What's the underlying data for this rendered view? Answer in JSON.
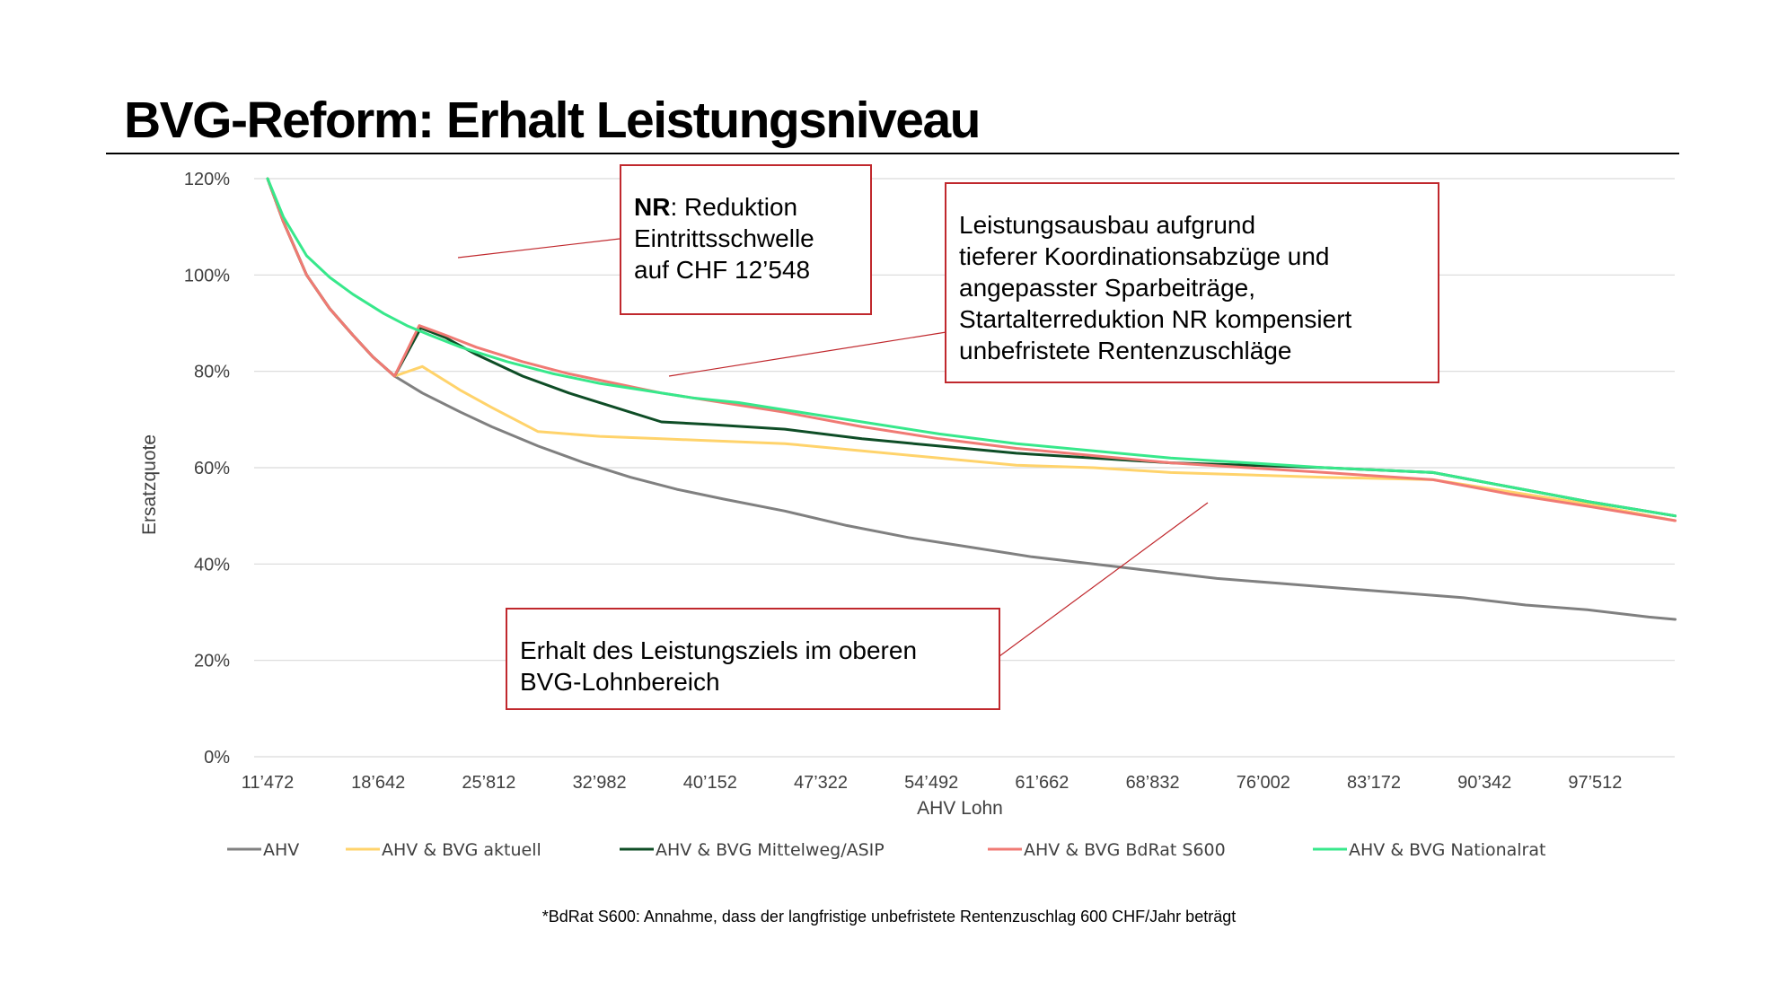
{
  "title": "BVG-Reform: Erhalt Leistungsniveau",
  "footnote": "*BdRat S600: Annahme, dass der langfristige unbefristete Rentenzuschlag 600 CHF/Jahr beträgt",
  "annotations": {
    "nr_box": {
      "bold": "NR",
      "line1_rest": ": Reduktion",
      "line2": "Eintrittsschwelle",
      "line3": "auf CHF 12’548"
    },
    "ausbau_box": {
      "lines": [
        "Leistungsausbau aufgrund",
        "tieferer Koordinationsabzüge und",
        "angepasster Sparbeiträge,",
        "Startalterreduktion NR kompensiert",
        "unbefristete Rentenzuschläge"
      ]
    },
    "erhalt_box": {
      "lines": [
        "Erhalt des Leistungsziels im oberen",
        "BVG-Lohnbereich"
      ]
    }
  },
  "colors": {
    "AHV": "#808080",
    "AHV & BVG aktuell": "#ffd36b",
    "AHV & BVG Mittelweg/ASIP": "#0e4d26",
    "AHV & BVG BdRat S600": "#f07a74",
    "AHV & BVG Nationalrat": "#37e88b",
    "callout_border": "#c0282d",
    "grid": "#d9d9d9"
  },
  "chart_data": {
    "type": "line",
    "xlabel": "AHV Lohn",
    "ylabel": "Ersatzquote",
    "ylim": [
      0,
      120
    ],
    "yticks": [
      "0%",
      "20%",
      "40%",
      "60%",
      "80%",
      "100%",
      "120%"
    ],
    "x_ticks": [
      "11’472",
      "18’642",
      "25’812",
      "32’982",
      "40’152",
      "47’322",
      "54’492",
      "61’662",
      "68’832",
      "76’002",
      "83’172",
      "90’342",
      "97’512"
    ],
    "xlim": [
      11472,
      103000
    ],
    "grid": "horizontal",
    "legend_position": "bottom",
    "series": [
      {
        "name": "AHV",
        "points": [
          [
            11472,
            120
          ],
          [
            12500,
            111
          ],
          [
            14000,
            100
          ],
          [
            15500,
            93
          ],
          [
            17000,
            87.5
          ],
          [
            18300,
            83
          ],
          [
            19700,
            79
          ],
          [
            21500,
            75.5
          ],
          [
            24000,
            71.5
          ],
          [
            26000,
            68.5
          ],
          [
            29000,
            64.5
          ],
          [
            32000,
            61
          ],
          [
            35000,
            58
          ],
          [
            38000,
            55.5
          ],
          [
            41000,
            53.5
          ],
          [
            45000,
            51
          ],
          [
            49000,
            48
          ],
          [
            53000,
            45.5
          ],
          [
            57000,
            43.5
          ],
          [
            61000,
            41.5
          ],
          [
            65000,
            40
          ],
          [
            69000,
            38.5
          ],
          [
            73000,
            37
          ],
          [
            77000,
            36
          ],
          [
            81000,
            35
          ],
          [
            85000,
            34
          ],
          [
            89000,
            33
          ],
          [
            93000,
            31.5
          ],
          [
            97000,
            30.5
          ],
          [
            101000,
            29
          ],
          [
            102700,
            28.5
          ]
        ]
      },
      {
        "name": "AHV & BVG aktuell",
        "points": [
          [
            11472,
            120
          ],
          [
            12500,
            111
          ],
          [
            14000,
            100
          ],
          [
            15500,
            93
          ],
          [
            17000,
            87.5
          ],
          [
            18300,
            83
          ],
          [
            19700,
            79
          ],
          [
            21500,
            81
          ],
          [
            24000,
            76
          ],
          [
            26000,
            72.5
          ],
          [
            29000,
            67.5
          ],
          [
            33000,
            66.5
          ],
          [
            37000,
            66
          ],
          [
            41000,
            65.5
          ],
          [
            45000,
            65
          ],
          [
            50000,
            63.5
          ],
          [
            55000,
            62
          ],
          [
            60000,
            60.5
          ],
          [
            65000,
            60
          ],
          [
            70000,
            59
          ],
          [
            75000,
            58.5
          ],
          [
            80000,
            58
          ],
          [
            87000,
            57.5
          ],
          [
            92000,
            55
          ],
          [
            97000,
            52.5
          ],
          [
            102700,
            49
          ]
        ]
      },
      {
        "name": "AHV & BVG Mittelweg/ASIP",
        "points": [
          [
            11472,
            120
          ],
          [
            12500,
            111
          ],
          [
            14000,
            100
          ],
          [
            15500,
            93
          ],
          [
            17000,
            87.5
          ],
          [
            18300,
            83
          ],
          [
            19700,
            79
          ],
          [
            21400,
            89
          ],
          [
            23000,
            87
          ],
          [
            25000,
            83.5
          ],
          [
            28000,
            79
          ],
          [
            31000,
            75.5
          ],
          [
            34000,
            72.5
          ],
          [
            37000,
            69.5
          ],
          [
            40000,
            69
          ],
          [
            45000,
            68
          ],
          [
            50000,
            66
          ],
          [
            55000,
            64.5
          ],
          [
            60000,
            63
          ],
          [
            65000,
            62
          ],
          [
            70000,
            61
          ],
          [
            75000,
            60.5
          ],
          [
            80000,
            60
          ],
          [
            87000,
            59
          ],
          [
            92000,
            56
          ],
          [
            97000,
            53
          ],
          [
            102700,
            50
          ]
        ]
      },
      {
        "name": "AHV & BVG BdRat S600",
        "points": [
          [
            11472,
            120
          ],
          [
            12500,
            111
          ],
          [
            14000,
            100
          ],
          [
            15500,
            93
          ],
          [
            17000,
            87.5
          ],
          [
            18300,
            83
          ],
          [
            19700,
            79
          ],
          [
            21300,
            89.5
          ],
          [
            23000,
            87.5
          ],
          [
            25000,
            85
          ],
          [
            28000,
            82
          ],
          [
            31000,
            79.5
          ],
          [
            34000,
            77.5
          ],
          [
            37000,
            75.5
          ],
          [
            40000,
            74
          ],
          [
            45000,
            71.5
          ],
          [
            50000,
            68.5
          ],
          [
            55000,
            66
          ],
          [
            60000,
            64
          ],
          [
            65000,
            62.5
          ],
          [
            70000,
            61
          ],
          [
            75000,
            60
          ],
          [
            80000,
            59
          ],
          [
            87000,
            57.5
          ],
          [
            92000,
            54.5
          ],
          [
            97000,
            52
          ],
          [
            102700,
            49
          ]
        ]
      },
      {
        "name": "AHV & BVG Nationalrat",
        "points": [
          [
            11472,
            120
          ],
          [
            12500,
            112
          ],
          [
            14000,
            104
          ],
          [
            15500,
            99.5
          ],
          [
            17000,
            96
          ],
          [
            19000,
            92
          ],
          [
            20500,
            89.5
          ],
          [
            22000,
            87.5
          ],
          [
            24000,
            85
          ],
          [
            27000,
            82
          ],
          [
            30000,
            79.5
          ],
          [
            33000,
            77.5
          ],
          [
            36000,
            76
          ],
          [
            39000,
            74.5
          ],
          [
            42000,
            73.5
          ],
          [
            45000,
            72
          ],
          [
            50000,
            69.5
          ],
          [
            55000,
            67
          ],
          [
            60000,
            65
          ],
          [
            65000,
            63.5
          ],
          [
            70000,
            62
          ],
          [
            75000,
            61
          ],
          [
            80000,
            60
          ],
          [
            87000,
            59
          ],
          [
            92000,
            56
          ],
          [
            97000,
            53
          ],
          [
            102700,
            50
          ]
        ]
      }
    ]
  }
}
